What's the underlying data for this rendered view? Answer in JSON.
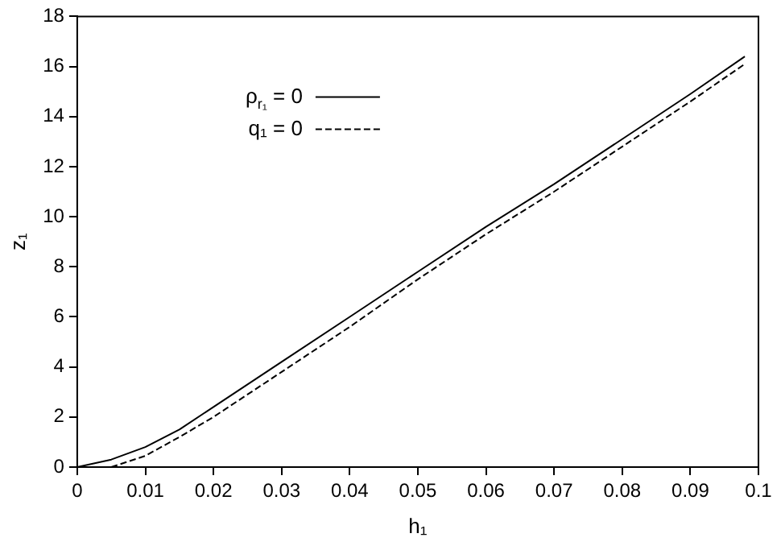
{
  "chart_data": {
    "type": "line",
    "xlabel": "h₁",
    "ylabel": "z₁",
    "xlim": [
      0,
      0.1
    ],
    "ylim": [
      0,
      18
    ],
    "xticks": [
      0,
      0.01,
      0.02,
      0.03,
      0.04,
      0.05,
      0.06,
      0.07,
      0.08,
      0.09,
      0.1
    ],
    "yticks": [
      0,
      2,
      4,
      6,
      8,
      10,
      12,
      14,
      16,
      18
    ],
    "grid": false,
    "legend": "top left",
    "marker": "none",
    "series": [
      {
        "name": "ρ$_{r₁}$ = 0",
        "color": "#000000",
        "line_style": "solid",
        "x": [
          0,
          0.005,
          0.01,
          0.015,
          0.02,
          0.03,
          0.04,
          0.05,
          0.06,
          0.07,
          0.08,
          0.09,
          0.098
        ],
        "values": [
          0,
          0.3,
          0.8,
          1.5,
          2.4,
          4.2,
          6.0,
          7.8,
          9.6,
          11.3,
          13.1,
          14.9,
          16.4
        ]
      },
      {
        "name": "q₁ = 0",
        "color": "#000000",
        "line_style": "dashed",
        "x": [
          0.005,
          0.01,
          0.015,
          0.02,
          0.03,
          0.04,
          0.05,
          0.06,
          0.07,
          0.08,
          0.09,
          0.098
        ],
        "values": [
          0,
          0.45,
          1.2,
          2.0,
          3.8,
          5.6,
          7.5,
          9.3,
          11.0,
          12.8,
          14.6,
          16.1
        ]
      }
    ]
  }
}
